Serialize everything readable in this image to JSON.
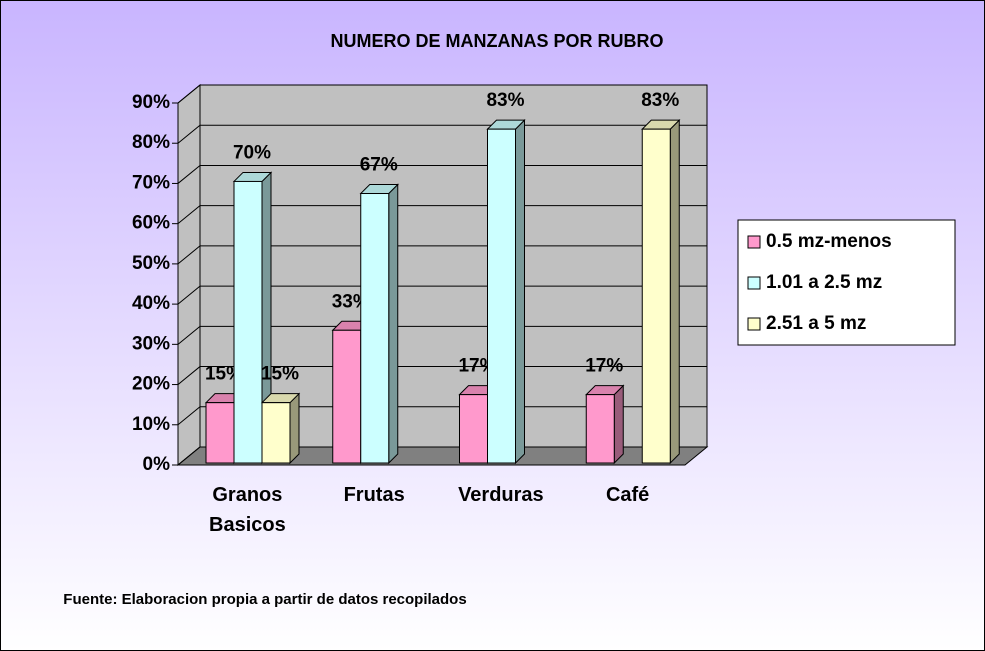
{
  "chart_data": {
    "type": "bar3d",
    "title": "NUMERO DE MANZANAS POR RUBRO",
    "categories": [
      "Granos Basicos",
      "Frutas",
      "Verduras",
      "Café"
    ],
    "series": [
      {
        "name": "0.5 mz-menos",
        "color": "#ff99cc",
        "values": [
          15,
          33,
          17,
          17
        ],
        "value_labels": [
          "15%",
          "33%",
          "17%",
          "17%"
        ]
      },
      {
        "name": "1.01 a 2.5 mz",
        "color": "#ccffff",
        "values": [
          70,
          67,
          83,
          null
        ],
        "value_labels": [
          "70%",
          "67%",
          "83%",
          null
        ]
      },
      {
        "name": "2.51 a 5 mz",
        "color": "#ffffcc",
        "values": [
          15,
          null,
          null,
          83
        ],
        "value_labels": [
          "15%",
          null,
          null,
          "83%"
        ]
      }
    ],
    "ylim": [
      0,
      90
    ],
    "yticks": [
      {
        "value": 0,
        "label": "0%"
      },
      {
        "value": 10,
        "label": "10%"
      },
      {
        "value": 20,
        "label": "20%"
      },
      {
        "value": 30,
        "label": "30%"
      },
      {
        "value": 40,
        "label": "40%"
      },
      {
        "value": 50,
        "label": "50%"
      },
      {
        "value": 60,
        "label": "60%"
      },
      {
        "value": 70,
        "label": "70%"
      },
      {
        "value": 80,
        "label": "80%"
      },
      {
        "value": 90,
        "label": "90%"
      }
    ],
    "grid": true,
    "legend": "right",
    "source": "Fuente: Elaboracion propia  a partir de datos recopilados"
  }
}
